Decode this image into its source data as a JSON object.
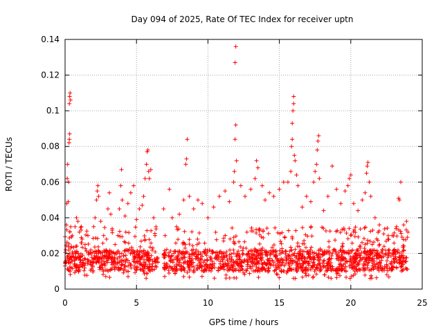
{
  "chart_data": {
    "type": "scatter",
    "title": "Day 094 of 2025, Rate Of TEC Index for receiver uptn",
    "xlabel": "GPS time / hours",
    "ylabel": "ROTI / TECUs",
    "xlim": [
      0,
      25
    ],
    "ylim": [
      0,
      0.14
    ],
    "x_ticks": [
      "0",
      "5",
      "10",
      "15",
      "20",
      "25"
    ],
    "y_ticks": [
      "0",
      "0.02",
      "0.04",
      "0.06",
      "0.08",
      "0.1",
      "0.12",
      "0.14"
    ],
    "grid": true,
    "marker": "+",
    "color": "#ff0000",
    "series": [
      {
        "points": [
          [
            0.0,
            0.013
          ],
          [
            0.05,
            0.022
          ],
          [
            0.1,
            0.036
          ],
          [
            0.12,
            0.048
          ],
          [
            0.15,
            0.062
          ],
          [
            0.18,
            0.07
          ],
          [
            0.22,
            0.049
          ],
          [
            0.25,
            0.06
          ],
          [
            0.28,
            0.082
          ],
          [
            0.3,
            0.084
          ],
          [
            0.32,
            0.087
          ],
          [
            0.3,
            0.104
          ],
          [
            0.32,
            0.108
          ],
          [
            0.35,
            0.11
          ],
          [
            0.38,
            0.106
          ],
          [
            0.4,
            0.023
          ],
          [
            0.5,
            0.03
          ],
          [
            0.6,
            0.018
          ],
          [
            0.7,
            0.035
          ],
          [
            0.8,
            0.04
          ],
          [
            0.9,
            0.038
          ],
          [
            1.0,
            0.032
          ],
          [
            1.2,
            0.028
          ],
          [
            1.4,
            0.025
          ],
          [
            1.6,
            0.03
          ],
          [
            1.8,
            0.022
          ],
          [
            2.0,
            0.035
          ],
          [
            2.1,
            0.04
          ],
          [
            2.2,
            0.05
          ],
          [
            2.25,
            0.055
          ],
          [
            2.3,
            0.058
          ],
          [
            2.35,
            0.052
          ],
          [
            2.5,
            0.038
          ],
          [
            2.7,
            0.03
          ],
          [
            2.9,
            0.028
          ],
          [
            3.0,
            0.045
          ],
          [
            3.1,
            0.054
          ],
          [
            3.2,
            0.042
          ],
          [
            3.3,
            0.033
          ],
          [
            3.5,
            0.025
          ],
          [
            3.7,
            0.03
          ],
          [
            3.8,
            0.045
          ],
          [
            3.9,
            0.058
          ],
          [
            3.95,
            0.067
          ],
          [
            4.0,
            0.05
          ],
          [
            4.2,
            0.041
          ],
          [
            4.4,
            0.048
          ],
          [
            4.6,
            0.054
          ],
          [
            4.8,
            0.058
          ],
          [
            5.0,
            0.039
          ],
          [
            5.2,
            0.045
          ],
          [
            5.4,
            0.047
          ],
          [
            5.5,
            0.052
          ],
          [
            5.6,
            0.062
          ],
          [
            5.7,
            0.07
          ],
          [
            5.75,
            0.077
          ],
          [
            5.8,
            0.078
          ],
          [
            5.85,
            0.066
          ],
          [
            5.9,
            0.062
          ],
          [
            6.0,
            0.067
          ],
          [
            6.2,
            0.04
          ],
          [
            6.3,
            0.03
          ],
          [
            6.9,
            0.045
          ],
          [
            7.0,
            0.03
          ],
          [
            7.3,
            0.056
          ],
          [
            7.5,
            0.04
          ],
          [
            7.8,
            0.035
          ],
          [
            8.0,
            0.042
          ],
          [
            8.3,
            0.05
          ],
          [
            8.45,
            0.07
          ],
          [
            8.5,
            0.073
          ],
          [
            8.55,
            0.084
          ],
          [
            8.7,
            0.052
          ],
          [
            9.0,
            0.045
          ],
          [
            9.3,
            0.05
          ],
          [
            9.6,
            0.048
          ],
          [
            10.0,
            0.04
          ],
          [
            10.4,
            0.046
          ],
          [
            10.8,
            0.052
          ],
          [
            11.2,
            0.055
          ],
          [
            11.5,
            0.049
          ],
          [
            11.8,
            0.06
          ],
          [
            11.85,
            0.066
          ],
          [
            11.9,
            0.084
          ],
          [
            11.95,
            0.092
          ],
          [
            11.9,
            0.127
          ],
          [
            11.95,
            0.136
          ],
          [
            12.0,
            0.072
          ],
          [
            12.3,
            0.058
          ],
          [
            12.6,
            0.052
          ],
          [
            13.0,
            0.056
          ],
          [
            13.3,
            0.062
          ],
          [
            13.4,
            0.072
          ],
          [
            13.5,
            0.068
          ],
          [
            13.8,
            0.058
          ],
          [
            14.0,
            0.05
          ],
          [
            14.3,
            0.054
          ],
          [
            14.6,
            0.052
          ],
          [
            15.0,
            0.056
          ],
          [
            15.3,
            0.06
          ],
          [
            15.6,
            0.06
          ],
          [
            15.8,
            0.066
          ],
          [
            15.85,
            0.08
          ],
          [
            15.9,
            0.084
          ],
          [
            15.9,
            0.093
          ],
          [
            15.95,
            0.1
          ],
          [
            16.0,
            0.104
          ],
          [
            16.0,
            0.108
          ],
          [
            16.05,
            0.075
          ],
          [
            16.1,
            0.072
          ],
          [
            16.2,
            0.064
          ],
          [
            16.3,
            0.058
          ],
          [
            16.6,
            0.046
          ],
          [
            16.9,
            0.052
          ],
          [
            17.2,
            0.049
          ],
          [
            17.4,
            0.06
          ],
          [
            17.5,
            0.066
          ],
          [
            17.6,
            0.07
          ],
          [
            17.65,
            0.078
          ],
          [
            17.7,
            0.083
          ],
          [
            17.75,
            0.086
          ],
          [
            17.8,
            0.062
          ],
          [
            18.1,
            0.044
          ],
          [
            18.4,
            0.052
          ],
          [
            18.7,
            0.069
          ],
          [
            19.0,
            0.056
          ],
          [
            19.3,
            0.048
          ],
          [
            19.6,
            0.055
          ],
          [
            19.8,
            0.058
          ],
          [
            19.9,
            0.062
          ],
          [
            20.0,
            0.064
          ],
          [
            20.2,
            0.048
          ],
          [
            20.5,
            0.044
          ],
          [
            20.8,
            0.05
          ],
          [
            21.0,
            0.054
          ],
          [
            21.1,
            0.065
          ],
          [
            21.15,
            0.069
          ],
          [
            21.2,
            0.071
          ],
          [
            21.3,
            0.06
          ],
          [
            21.4,
            0.052
          ],
          [
            21.7,
            0.04
          ],
          [
            22.0,
            0.036
          ],
          [
            22.3,
            0.031
          ],
          [
            22.6,
            0.028
          ],
          [
            22.9,
            0.03
          ],
          [
            23.2,
            0.035
          ],
          [
            23.35,
            0.051
          ],
          [
            23.4,
            0.05
          ],
          [
            23.5,
            0.06
          ],
          [
            23.7,
            0.036
          ],
          [
            23.9,
            0.038
          ],
          [
            24.0,
            0.032
          ]
        ],
        "band": {
          "x_start": 0.0,
          "x_end": 24.0,
          "y_low": 0.006,
          "y_high": 0.035,
          "gaps": [
            [
              6.5,
              6.9
            ]
          ],
          "dense_min": 0.01,
          "dense_max": 0.022
        }
      }
    ]
  }
}
